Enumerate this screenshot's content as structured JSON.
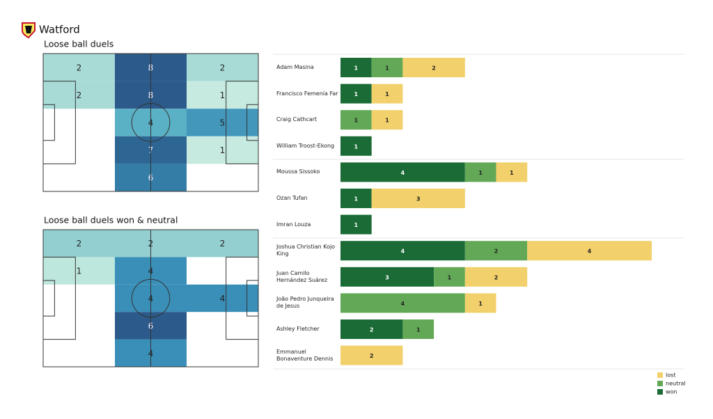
{
  "header": {
    "title": "Watford"
  },
  "chart_data": [
    {
      "type": "heatmap",
      "title": "Loose ball duels",
      "colormap": [
        "#e0f3ec",
        "#bde6dc",
        "#93cfd0",
        "#5ab0c4",
        "#3a8fb8",
        "#2e6a96",
        "#2c5a8a"
      ],
      "cells": [
        [
          2,
          8,
          2
        ],
        [
          2,
          8,
          1
        ],
        [
          null,
          4,
          5
        ],
        [
          null,
          7,
          1
        ],
        [
          null,
          6,
          null
        ]
      ]
    },
    {
      "type": "heatmap",
      "title": "Loose ball duels won & neutral",
      "colormap": [
        "#e0f3ec",
        "#bde6dc",
        "#93cfd0",
        "#5ab0c4",
        "#3a8fb8",
        "#2e6a96",
        "#2c5a8a"
      ],
      "cells": [
        [
          2,
          2,
          2
        ],
        [
          1,
          4,
          null
        ],
        [
          null,
          4,
          4
        ],
        [
          null,
          6,
          null
        ],
        [
          null,
          4,
          null
        ]
      ]
    },
    {
      "type": "stacked-bar",
      "orientation": "horizontal",
      "categories": [
        "Adam Masina",
        "Francisco Femenía Far",
        "Craig Cathcart",
        "William Troost-Ekong",
        "Moussa Sissoko",
        "Ozan Tufan",
        "Imran Louza",
        "Joshua Christian Kojo King",
        "Juan Camilo Hernández Suárez",
        "João Pedro Junqueira de Jesus",
        "Ashley Fletcher",
        "Emmanuel Bonaventure Dennis"
      ],
      "series": [
        {
          "name": "won",
          "color": "#1a6b35",
          "values": [
            1,
            1,
            null,
            1,
            4,
            1,
            1,
            4,
            3,
            null,
            2,
            null
          ]
        },
        {
          "name": "neutral",
          "color": "#62a856",
          "values": [
            1,
            null,
            1,
            null,
            1,
            null,
            null,
            2,
            1,
            4,
            1,
            null
          ]
        },
        {
          "name": "lost",
          "color": "#f2d06b",
          "values": [
            2,
            1,
            1,
            null,
            1,
            3,
            null,
            4,
            2,
            1,
            null,
            2
          ]
        }
      ],
      "legend": "bottom-right"
    }
  ]
}
